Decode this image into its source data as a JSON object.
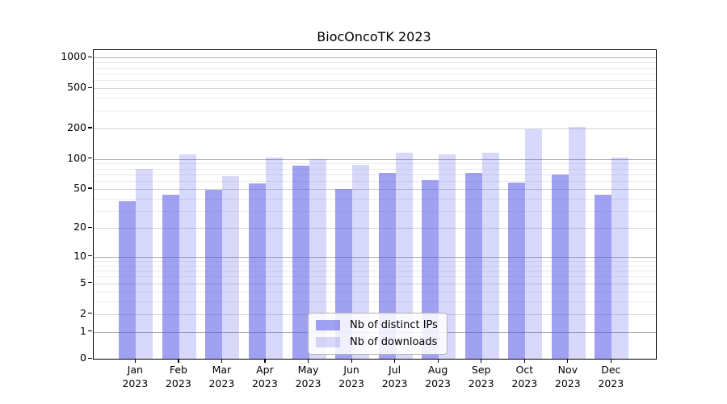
{
  "chart_data": {
    "type": "bar",
    "title": "BiocOncoTK 2023",
    "categories": [
      "Jan",
      "Feb",
      "Mar",
      "Apr",
      "May",
      "Jun",
      "Jul",
      "Aug",
      "Sep",
      "Oct",
      "Nov",
      "Dec"
    ],
    "x_tick_line2": "2023",
    "series": [
      {
        "name": "Nb of distinct IPs",
        "color": "#4d4de7",
        "opacity": 0.53,
        "values": [
          38,
          44,
          49,
          57,
          85,
          50,
          72,
          61,
          72,
          58,
          70,
          44
        ]
      },
      {
        "name": "Nb of downloads",
        "color": "#4d4de7",
        "opacity": 0.22,
        "values": [
          79,
          110,
          67,
          102,
          100,
          87,
          114,
          111,
          114,
          198,
          208,
          102
        ]
      }
    ],
    "y_ticks": [
      0,
      1,
      2,
      5,
      10,
      20,
      50,
      100,
      200,
      500,
      1000
    ],
    "y_scale": "log1p",
    "ylim": [
      0,
      1000
    ],
    "grid": true,
    "legend_position": "lower center inside",
    "axis_color": "#000000",
    "major_grid_color": "#b0b0b0",
    "minor_grid_color": "#ebebeb"
  }
}
